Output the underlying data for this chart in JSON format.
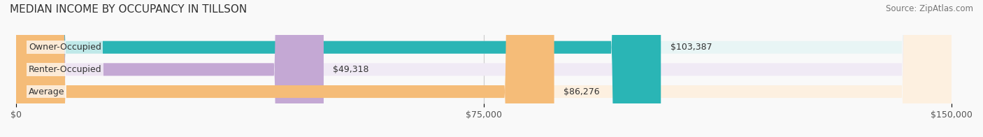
{
  "title": "MEDIAN INCOME BY OCCUPANCY IN TILLSON",
  "source": "Source: ZipAtlas.com",
  "categories": [
    "Owner-Occupied",
    "Renter-Occupied",
    "Average"
  ],
  "values": [
    103387,
    49318,
    86276
  ],
  "labels": [
    "$103,387",
    "$49,318",
    "$86,276"
  ],
  "bar_colors": [
    "#2ab5b5",
    "#c4a8d4",
    "#f5bc78"
  ],
  "bar_bg_colors": [
    "#e8f5f5",
    "#f0eaf5",
    "#fdf0e0"
  ],
  "xlim": [
    0,
    150000
  ],
  "xticks": [
    0,
    75000,
    150000
  ],
  "xticklabels": [
    "$0",
    "$75,000",
    "$150,000"
  ],
  "title_fontsize": 11,
  "source_fontsize": 8.5,
  "label_fontsize": 9,
  "bar_label_fontsize": 9,
  "background_color": "#f9f9f9"
}
